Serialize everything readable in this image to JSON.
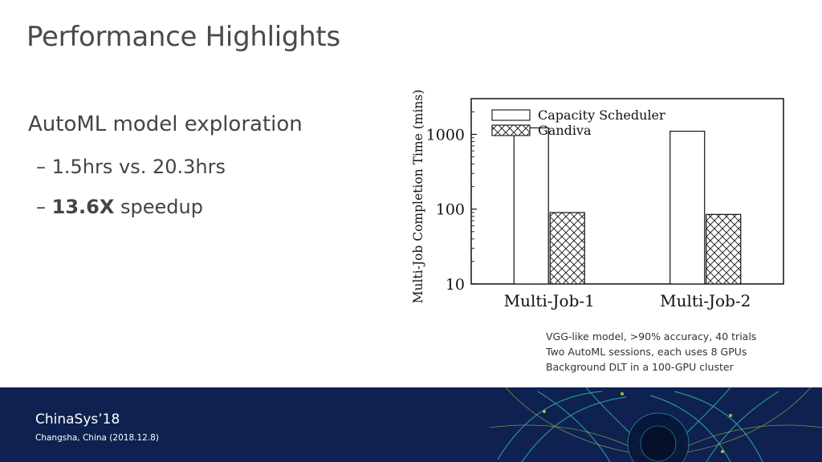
{
  "slide": {
    "title": "Performance Highlights",
    "bullets": {
      "main": "AutoML model exploration",
      "sub1_dash": "–",
      "sub1_text": "1.5hrs vs. 20.3hrs",
      "sub2_dash": "–",
      "sub2_bold": "13.6X",
      "sub2_text": " speedup"
    },
    "notes": [
      "VGG-like model, >90% accuracy, 40 trials",
      "Two AutoML sessions, each uses 8 GPUs",
      "Background DLT in a 100-GPU cluster"
    ]
  },
  "footer": {
    "conference": "ChinaSys’18",
    "location": "Changsha, China (2018.12.8)",
    "colors": {
      "background": "#0e2150",
      "accent": "#2fa4a8"
    }
  },
  "chart_data": {
    "type": "bar",
    "ylabel": "Multi-Job Completion Time (mins)",
    "yscale": "log",
    "ylim": [
      10,
      3000
    ],
    "yticks": [
      10,
      100,
      1000
    ],
    "ytick_labels": [
      "10",
      "100",
      "1000"
    ],
    "categories": [
      "Multi-Job-1",
      "Multi-Job-2"
    ],
    "series": [
      {
        "name": "Capacity Scheduler",
        "values": [
          1220,
          1100
        ],
        "pattern": "none"
      },
      {
        "name": "Gandiva",
        "values": [
          90,
          85
        ],
        "pattern": "crosshatch"
      }
    ],
    "legend": "top-left"
  }
}
